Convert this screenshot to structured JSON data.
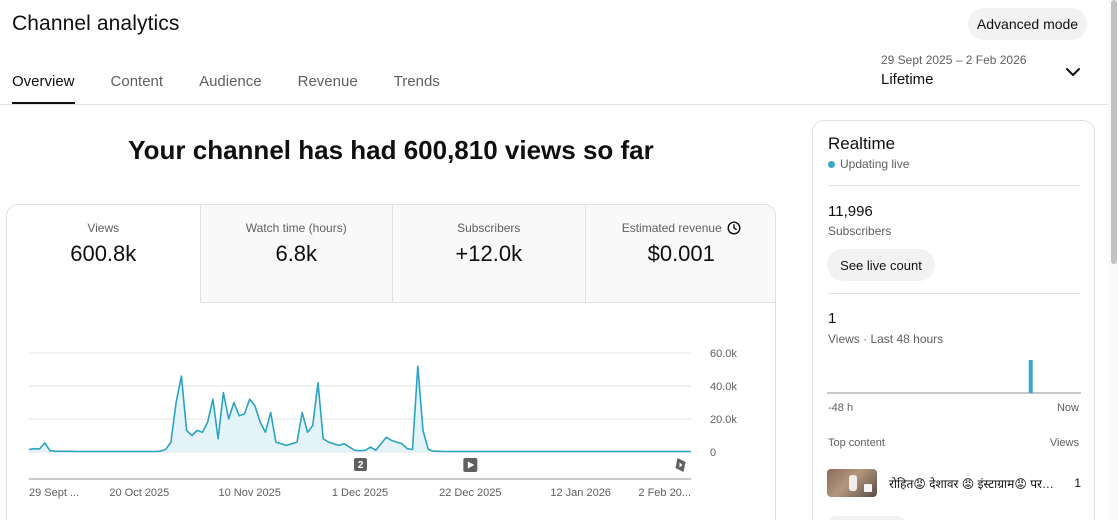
{
  "header": {
    "title": "Channel analytics",
    "advanced_mode": "Advanced mode"
  },
  "tabs": [
    {
      "label": "Overview",
      "active": true
    },
    {
      "label": "Content",
      "active": false
    },
    {
      "label": "Audience",
      "active": false
    },
    {
      "label": "Revenue",
      "active": false
    },
    {
      "label": "Trends",
      "active": false
    }
  ],
  "date_picker": {
    "range": "29 Sept 2025 – 2 Feb 2026",
    "label": "Lifetime"
  },
  "headline": "Your channel has had 600,810 views so far",
  "metrics": [
    {
      "label": "Views",
      "value": "600.8k"
    },
    {
      "label": "Watch time (hours)",
      "value": "6.8k"
    },
    {
      "label": "Subscribers",
      "value": "+12.0k"
    },
    {
      "label": "Estimated revenue",
      "value": "$0.001"
    }
  ],
  "chart_data": {
    "type": "area",
    "title": "",
    "xlabel": "",
    "ylabel": "",
    "ylim": [
      0,
      60000
    ],
    "y_ticks": [
      "60.0k",
      "40.0k",
      "20.0k",
      "0"
    ],
    "x_ticks": [
      "29 Sept ...",
      "20 Oct 2025",
      "10 Nov 2025",
      "1 Dec 2025",
      "22 Dec 2025",
      "12 Jan 2026",
      "2 Feb 20..."
    ],
    "x_start": "2025-09-29",
    "x_end": "2026-02-02",
    "color": "#2ba3c4",
    "grid": true,
    "series": [
      {
        "values": [
          1500,
          2000,
          1800,
          5500,
          800,
          500,
          400,
          400,
          400,
          300,
          300,
          300,
          300,
          300,
          300,
          300,
          300,
          300,
          300,
          300,
          300,
          300,
          300,
          300,
          300,
          500,
          1500,
          6000,
          30000,
          46000,
          13000,
          10000,
          13000,
          12000,
          18000,
          32000,
          8000,
          36000,
          20000,
          30000,
          22000,
          23000,
          32000,
          28000,
          18000,
          12000,
          24000,
          6000,
          5000,
          4000,
          5000,
          6000,
          24000,
          12000,
          16000,
          42000,
          8000,
          6000,
          5000,
          4000,
          5000,
          3000,
          1000,
          800,
          1000,
          3000,
          1000,
          5000,
          9000,
          7000,
          6000,
          5000,
          2000,
          1500,
          52000,
          13000,
          1500,
          500,
          400,
          300,
          300,
          300,
          300,
          300,
          300,
          300,
          300,
          300,
          300,
          300,
          300,
          300,
          300,
          300,
          300,
          300,
          300,
          300,
          300,
          300,
          300,
          300,
          300,
          300,
          300,
          300,
          300,
          300,
          300,
          300,
          300,
          300,
          300,
          300,
          300,
          300,
          300,
          300,
          300,
          300,
          300,
          300,
          300,
          300,
          300,
          300,
          300
        ]
      }
    ],
    "markers": [
      {
        "date": "2025-12-01",
        "type": "count",
        "label": "2"
      },
      {
        "date": "2025-12-22",
        "type": "video-icon"
      },
      {
        "date": "2026-01-31",
        "type": "shorts-icon"
      }
    ]
  },
  "realtime": {
    "title": "Realtime",
    "live_label": "Updating live",
    "subscribers": "11,996",
    "subscribers_label": "Subscribers",
    "see_live_count": "See live count",
    "views": "1",
    "views_label": "Views · Last 48 hours",
    "axis_left": "-48 h",
    "axis_right": "Now",
    "bars": [
      0,
      0,
      0,
      0,
      0,
      0,
      0,
      0,
      0,
      0,
      0,
      0,
      0,
      0,
      0,
      0,
      0,
      0,
      0,
      0,
      0,
      0,
      0,
      0,
      0,
      0,
      0,
      0,
      0,
      0,
      0,
      0,
      0,
      0,
      0,
      0,
      0,
      0,
      1,
      0,
      0,
      0,
      0,
      0,
      0,
      0,
      0,
      0
    ],
    "top_content_label": "Top content",
    "views_col_label": "Views",
    "top_content": [
      {
        "title": "रोहित😡 देशावर 😡 इंस्टाग्राम😡 पर फेमस हो गया",
        "views": "1"
      }
    ]
  }
}
